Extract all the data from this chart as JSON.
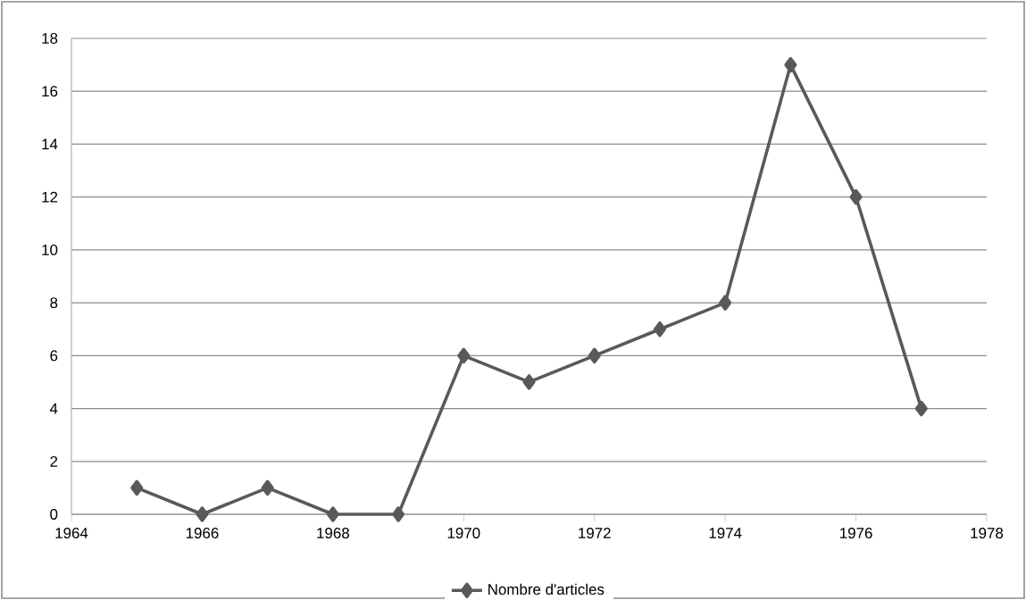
{
  "chart_data": {
    "type": "line",
    "x": [
      1965,
      1966,
      1967,
      1968,
      1969,
      1970,
      1971,
      1972,
      1973,
      1974,
      1975,
      1976,
      1977
    ],
    "series": [
      {
        "name": "Nombre d'articles",
        "color": "#595959",
        "values": [
          1,
          0,
          1,
          0,
          0,
          6,
          5,
          6,
          7,
          8,
          17,
          12,
          4
        ]
      }
    ],
    "xlim": [
      1964,
      1978
    ],
    "xticks": [
      1964,
      1966,
      1968,
      1970,
      1972,
      1974,
      1976,
      1978
    ],
    "ylim": [
      0,
      18
    ],
    "yticks": [
      0,
      2,
      4,
      6,
      8,
      10,
      12,
      14,
      16,
      18
    ],
    "grid": "y",
    "legend": "bottom",
    "marker": "diamond",
    "line_style": "solid"
  }
}
